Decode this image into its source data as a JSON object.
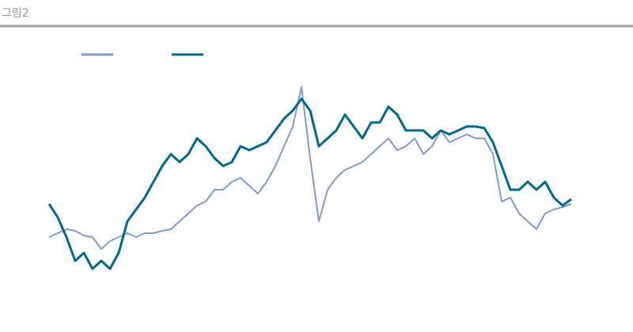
{
  "chart_data": {
    "type": "line",
    "title": "그림2",
    "ylim": [
      0,
      300
    ],
    "series": [
      {
        "color": "#7f9ccb",
        "values": [
          80,
          85,
          90,
          88,
          82,
          80,
          65,
          75,
          80,
          85,
          80,
          85,
          85,
          88,
          90,
          100,
          110,
          120,
          125,
          140,
          140,
          150,
          155,
          145,
          135,
          150,
          170,
          195,
          220,
          270,
          180,
          100,
          140,
          155,
          165,
          170,
          175,
          185,
          195,
          205,
          190,
          195,
          205,
          185,
          195,
          215,
          200,
          205,
          210,
          205,
          205,
          185,
          125,
          130,
          110,
          100,
          90,
          110,
          115,
          118,
          122
        ]
      },
      {
        "color": "#006a8e",
        "values": [
          122,
          105,
          80,
          50,
          60,
          40,
          50,
          40,
          60,
          100,
          115,
          130,
          150,
          170,
          185,
          175,
          185,
          205,
          195,
          180,
          170,
          175,
          195,
          190,
          195,
          200,
          215,
          230,
          240,
          255,
          240,
          195,
          205,
          215,
          235,
          220,
          205,
          225,
          225,
          245,
          235,
          215,
          215,
          215,
          205,
          215,
          210,
          215,
          220,
          220,
          218,
          200,
          170,
          140,
          140,
          150,
          140,
          150,
          130,
          120,
          128
        ]
      }
    ]
  }
}
